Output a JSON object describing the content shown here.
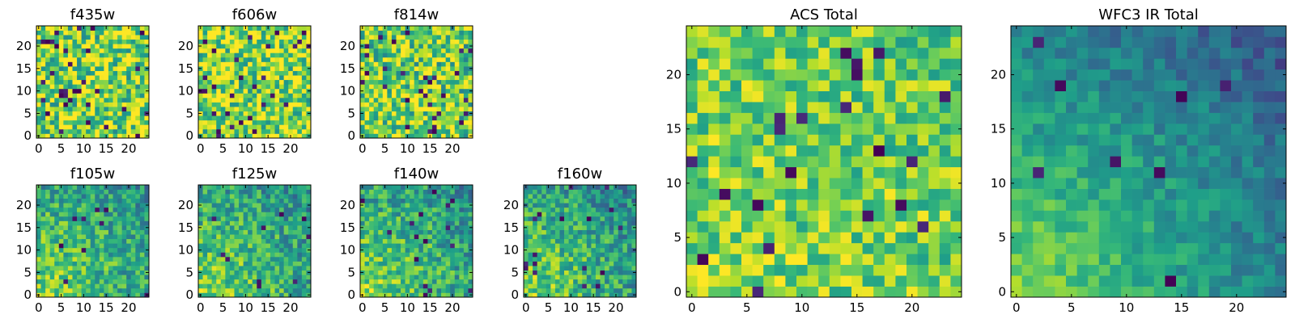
{
  "chart_data": [
    {
      "type": "heatmap",
      "title": "f435w",
      "xticks": [
        0,
        5,
        10,
        15,
        20
      ],
      "yticks": [
        0,
        5,
        10,
        15,
        20
      ],
      "xlim": [
        -0.5,
        24.5
      ],
      "ylim": [
        -0.5,
        24.5
      ],
      "grid_size": [
        25,
        25
      ],
      "colormap": "viridis",
      "seed": 11,
      "trend": 0.0,
      "noise": 0.35,
      "dark_fraction": 0.05
    },
    {
      "type": "heatmap",
      "title": "f606w",
      "xticks": [
        0,
        5,
        10,
        15,
        20
      ],
      "yticks": [
        0,
        5,
        10,
        15,
        20
      ],
      "xlim": [
        -0.5,
        24.5
      ],
      "ylim": [
        -0.5,
        24.5
      ],
      "grid_size": [
        25,
        25
      ],
      "colormap": "viridis",
      "seed": 23,
      "trend": 0.0,
      "noise": 0.32,
      "dark_fraction": 0.04
    },
    {
      "type": "heatmap",
      "title": "f814w",
      "xticks": [
        0,
        5,
        10,
        15,
        20
      ],
      "yticks": [
        0,
        5,
        10,
        15,
        20
      ],
      "xlim": [
        -0.5,
        24.5
      ],
      "ylim": [
        -0.5,
        24.5
      ],
      "grid_size": [
        25,
        25
      ],
      "colormap": "viridis",
      "seed": 37,
      "trend": 0.1,
      "noise": 0.32,
      "dark_fraction": 0.04
    },
    {
      "type": "heatmap",
      "title": "f105w",
      "xticks": [
        0,
        5,
        10,
        15,
        20
      ],
      "yticks": [
        0,
        5,
        10,
        15,
        20
      ],
      "xlim": [
        -0.5,
        24.5
      ],
      "ylim": [
        -0.5,
        24.5
      ],
      "grid_size": [
        25,
        25
      ],
      "colormap": "viridis",
      "seed": 41,
      "trend": 0.45,
      "noise": 0.22,
      "dark_fraction": 0.015
    },
    {
      "type": "heatmap",
      "title": "f125w",
      "xticks": [
        0,
        5,
        10,
        15,
        20
      ],
      "yticks": [
        0,
        5,
        10,
        15,
        20
      ],
      "xlim": [
        -0.5,
        24.5
      ],
      "ylim": [
        -0.5,
        24.5
      ],
      "grid_size": [
        25,
        25
      ],
      "colormap": "viridis",
      "seed": 53,
      "trend": 0.45,
      "noise": 0.22,
      "dark_fraction": 0.015
    },
    {
      "type": "heatmap",
      "title": "f140w",
      "xticks": [
        0,
        5,
        10,
        15,
        20
      ],
      "yticks": [
        0,
        5,
        10,
        15,
        20
      ],
      "xlim": [
        -0.5,
        24.5
      ],
      "ylim": [
        -0.5,
        24.5
      ],
      "grid_size": [
        25,
        25
      ],
      "colormap": "viridis",
      "seed": 67,
      "trend": 0.45,
      "noise": 0.22,
      "dark_fraction": 0.02
    },
    {
      "type": "heatmap",
      "title": "f160w",
      "xticks": [
        0,
        5,
        10,
        15,
        20
      ],
      "yticks": [
        0,
        5,
        10,
        15,
        20
      ],
      "xlim": [
        -0.5,
        24.5
      ],
      "ylim": [
        -0.5,
        24.5
      ],
      "grid_size": [
        25,
        25
      ],
      "colormap": "viridis",
      "seed": 79,
      "trend": 0.5,
      "noise": 0.22,
      "dark_fraction": 0.025
    },
    {
      "type": "heatmap",
      "title": "ACS Total",
      "xticks": [
        0,
        5,
        10,
        15,
        20
      ],
      "yticks": [
        0,
        5,
        10,
        15,
        20
      ],
      "xlim": [
        -0.5,
        24.5
      ],
      "ylim": [
        -0.5,
        24.5
      ],
      "grid_size": [
        25,
        25
      ],
      "colormap": "viridis",
      "seed": 97,
      "trend": 0.1,
      "noise": 0.22,
      "dark_fraction": 0.035
    },
    {
      "type": "heatmap",
      "title": "WFC3 IR Total",
      "xticks": [
        0,
        5,
        10,
        15,
        20
      ],
      "yticks": [
        0,
        5,
        10,
        15,
        20
      ],
      "xlim": [
        -0.5,
        24.5
      ],
      "ylim": [
        -0.5,
        24.5
      ],
      "grid_size": [
        25,
        25
      ],
      "colormap": "viridis",
      "seed": 113,
      "trend": 0.75,
      "noise": 0.12,
      "dark_fraction": 0.015
    }
  ]
}
